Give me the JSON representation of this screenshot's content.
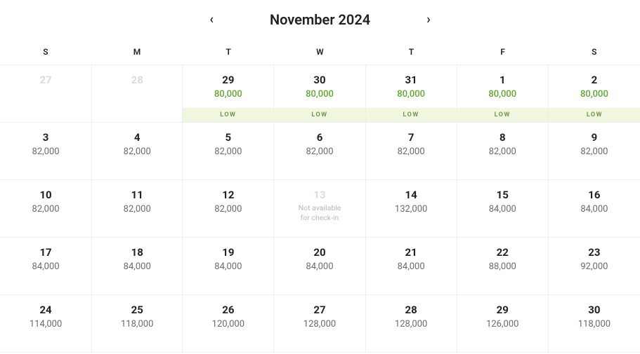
{
  "header": {
    "title": "November 2024",
    "prev_icon": "‹",
    "next_icon": "›"
  },
  "weekdays": [
    "S",
    "M",
    "T",
    "W",
    "T",
    "F",
    "S"
  ],
  "low_label": "LOW",
  "unavailable_text": "Not available\nfor check-in",
  "colors": {
    "low_bg": "#eff7e0",
    "low_text": "#6f8c49",
    "green_price": "#5fa82f",
    "muted_day": "#dcdcdc",
    "border": "#eeeeee",
    "text": "#222222",
    "price_text": "#6b6b6b",
    "unavail_text": "#b9b9b9",
    "background": "#ffffff"
  },
  "rows": [
    [
      {
        "day": "27",
        "muted": true
      },
      {
        "day": "28",
        "muted": true
      },
      {
        "day": "29",
        "price": "80,000",
        "low": true,
        "green": true
      },
      {
        "day": "30",
        "price": "80,000",
        "low": true,
        "green": true
      },
      {
        "day": "31",
        "price": "80,000",
        "low": true,
        "green": true
      },
      {
        "day": "1",
        "price": "80,000",
        "low": true,
        "green": true
      },
      {
        "day": "2",
        "price": "80,000",
        "low": true,
        "green": true
      }
    ],
    [
      {
        "day": "3",
        "price": "82,000"
      },
      {
        "day": "4",
        "price": "82,000"
      },
      {
        "day": "5",
        "price": "82,000"
      },
      {
        "day": "6",
        "price": "82,000"
      },
      {
        "day": "7",
        "price": "82,000"
      },
      {
        "day": "8",
        "price": "82,000"
      },
      {
        "day": "9",
        "price": "82,000"
      }
    ],
    [
      {
        "day": "10",
        "price": "82,000"
      },
      {
        "day": "11",
        "price": "82,000"
      },
      {
        "day": "12",
        "price": "82,000"
      },
      {
        "day": "13",
        "unavailable": true,
        "muted": true
      },
      {
        "day": "14",
        "price": "132,000"
      },
      {
        "day": "15",
        "price": "84,000"
      },
      {
        "day": "16",
        "price": "84,000"
      }
    ],
    [
      {
        "day": "17",
        "price": "84,000"
      },
      {
        "day": "18",
        "price": "84,000"
      },
      {
        "day": "19",
        "price": "84,000"
      },
      {
        "day": "20",
        "price": "84,000"
      },
      {
        "day": "21",
        "price": "84,000"
      },
      {
        "day": "22",
        "price": "88,000"
      },
      {
        "day": "23",
        "price": "92,000"
      }
    ],
    [
      {
        "day": "24",
        "price": "114,000"
      },
      {
        "day": "25",
        "price": "118,000"
      },
      {
        "day": "26",
        "price": "120,000"
      },
      {
        "day": "27",
        "price": "128,000"
      },
      {
        "day": "28",
        "price": "128,000"
      },
      {
        "day": "29",
        "price": "126,000"
      },
      {
        "day": "30",
        "price": "118,000"
      }
    ]
  ]
}
